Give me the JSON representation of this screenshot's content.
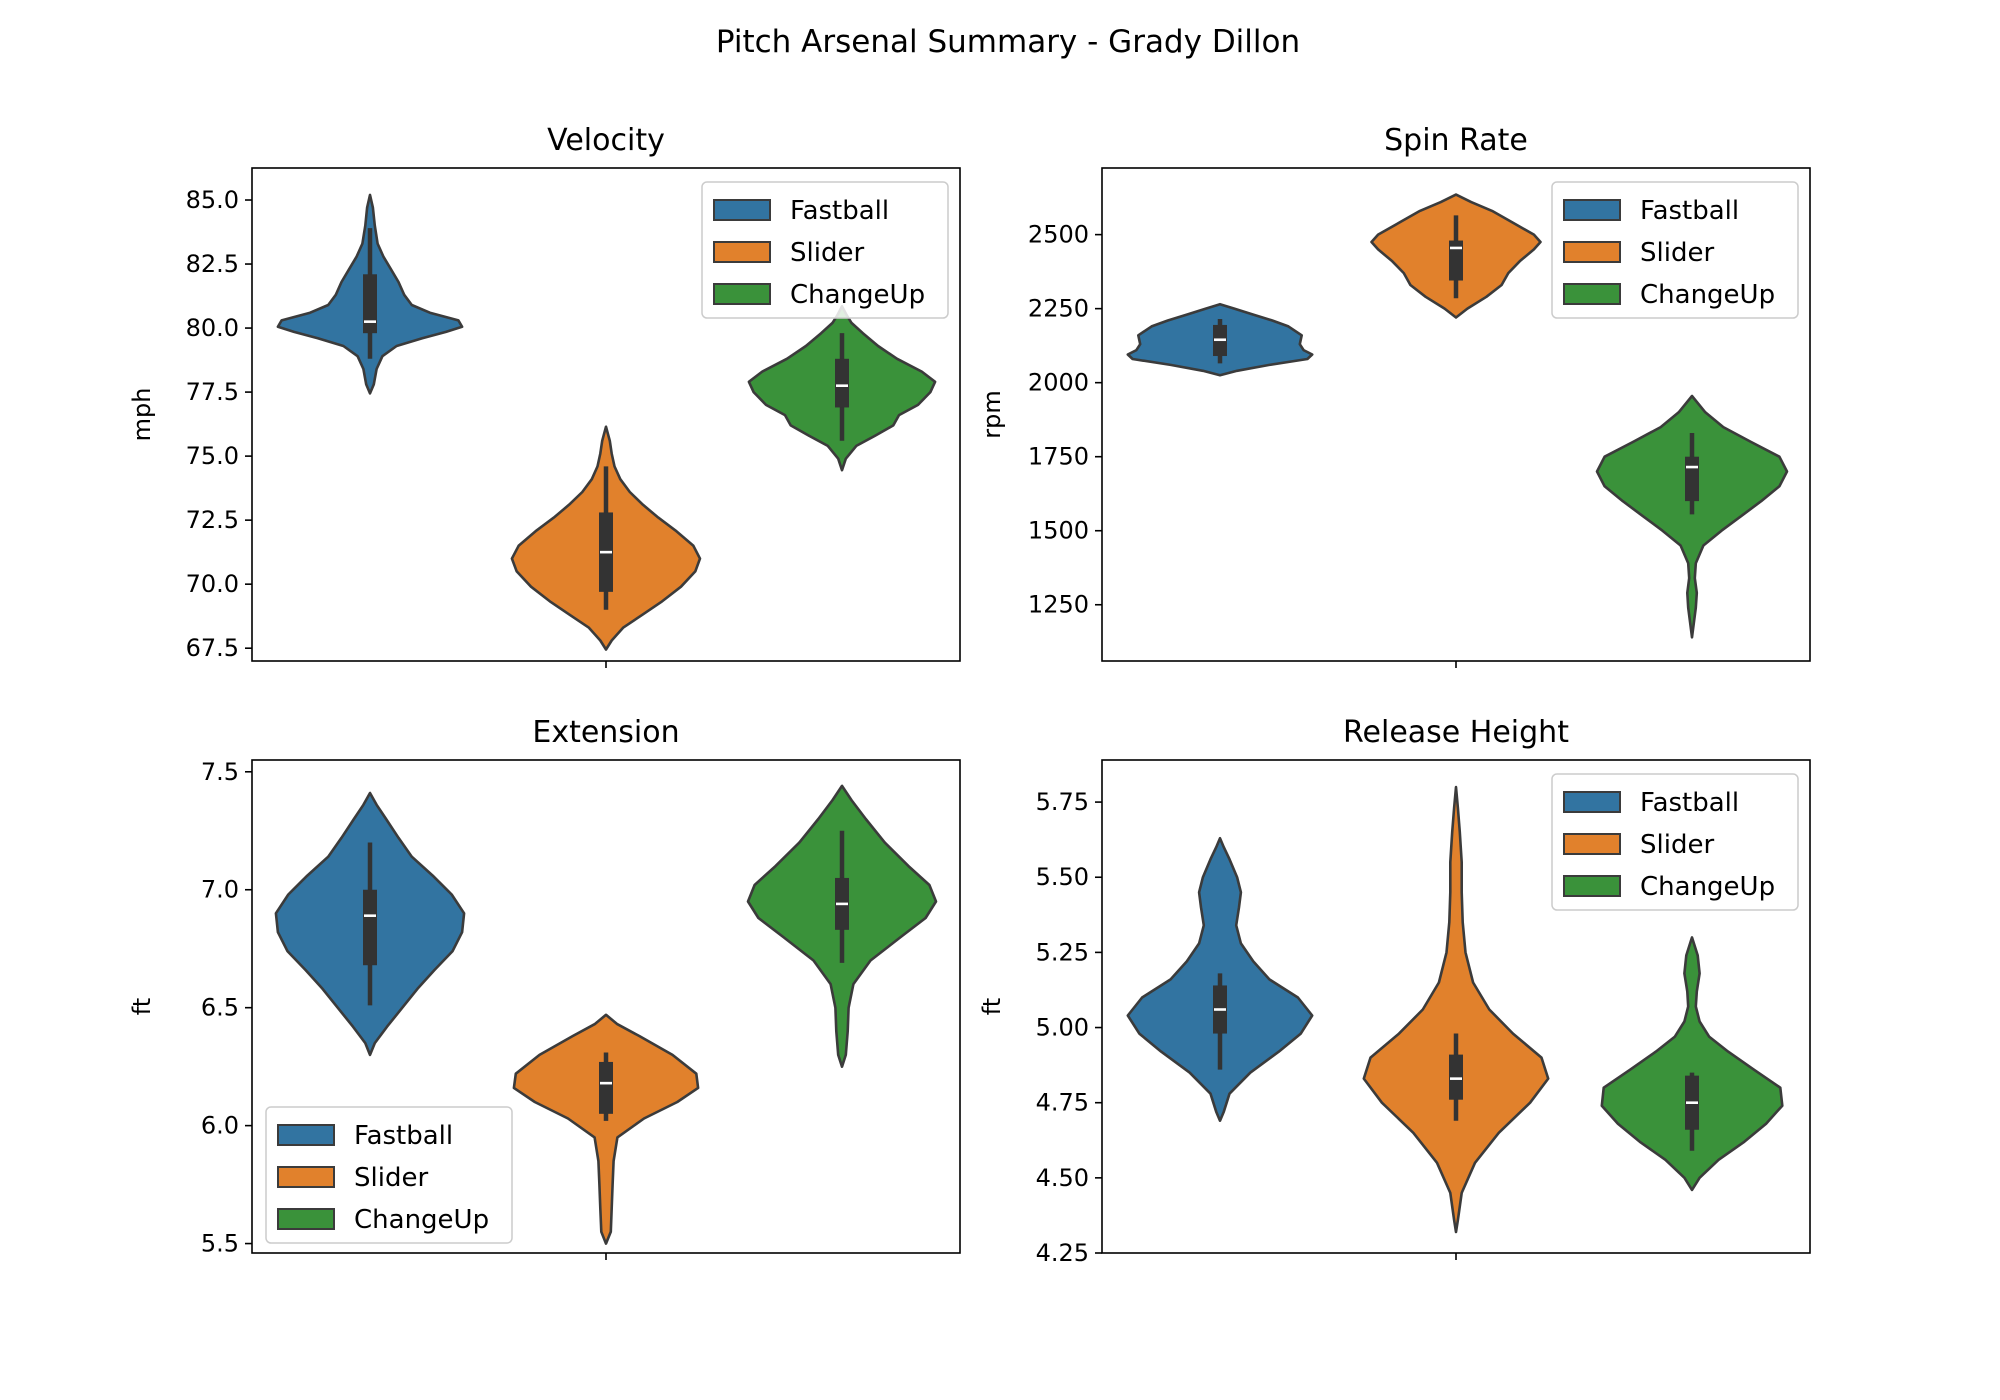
{
  "suptitle": "Pitch Arsenal Summary - Grady Dillon",
  "colors": {
    "Fastball": "#3274a1",
    "Slider": "#e1812c",
    "ChangeUp": "#3a923a",
    "outline": "#3b3b3b",
    "boxplot": "#333333",
    "median": "#ffffff"
  },
  "chart_data": [
    {
      "type": "violin",
      "title": "Velocity",
      "ylabel": "mph",
      "ylim": [
        67.0,
        86.25
      ],
      "yticks": [
        67.5,
        70.0,
        72.5,
        75.0,
        77.5,
        80.0,
        82.5,
        85.0
      ],
      "tick_decimals": 1,
      "legend": "upper right",
      "series": [
        {
          "name": "Fastball",
          "min": 78.8,
          "q1": 79.8,
          "median": 80.25,
          "q3": 82.1,
          "max": 83.9,
          "kde": [
            [
              77.45,
              0.0
            ],
            [
              77.8,
              0.04
            ],
            [
              78.4,
              0.07
            ],
            [
              78.9,
              0.13
            ],
            [
              79.3,
              0.28
            ],
            [
              79.6,
              0.55
            ],
            [
              79.85,
              0.8
            ],
            [
              80.05,
              0.97
            ],
            [
              80.3,
              0.93
            ],
            [
              80.6,
              0.63
            ],
            [
              80.9,
              0.44
            ],
            [
              81.3,
              0.36
            ],
            [
              81.8,
              0.3
            ],
            [
              82.3,
              0.22
            ],
            [
              82.8,
              0.14
            ],
            [
              83.3,
              0.08
            ],
            [
              84.0,
              0.05
            ],
            [
              84.7,
              0.03
            ],
            [
              85.2,
              0.0
            ]
          ]
        },
        {
          "name": "Slider",
          "min": 69.0,
          "q1": 69.7,
          "median": 71.25,
          "q3": 72.8,
          "max": 74.6,
          "kde": [
            [
              67.45,
              0.0
            ],
            [
              67.8,
              0.06
            ],
            [
              68.3,
              0.18
            ],
            [
              68.8,
              0.38
            ],
            [
              69.3,
              0.58
            ],
            [
              69.9,
              0.79
            ],
            [
              70.5,
              0.94
            ],
            [
              71.0,
              0.99
            ],
            [
              71.5,
              0.92
            ],
            [
              72.1,
              0.73
            ],
            [
              72.6,
              0.55
            ],
            [
              73.1,
              0.39
            ],
            [
              73.6,
              0.25
            ],
            [
              74.1,
              0.15
            ],
            [
              74.6,
              0.09
            ],
            [
              75.1,
              0.06
            ],
            [
              75.6,
              0.04
            ],
            [
              76.15,
              0.0
            ]
          ]
        },
        {
          "name": "ChangeUp",
          "min": 75.6,
          "q1": 76.9,
          "median": 77.75,
          "q3": 78.8,
          "max": 79.8,
          "kde": [
            [
              74.45,
              0.0
            ],
            [
              74.9,
              0.04
            ],
            [
              75.4,
              0.15
            ],
            [
              75.8,
              0.35
            ],
            [
              76.2,
              0.54
            ],
            [
              76.6,
              0.6
            ],
            [
              77.0,
              0.8
            ],
            [
              77.5,
              0.93
            ],
            [
              77.9,
              0.98
            ],
            [
              78.3,
              0.84
            ],
            [
              78.8,
              0.58
            ],
            [
              79.3,
              0.38
            ],
            [
              79.8,
              0.22
            ],
            [
              80.2,
              0.1
            ],
            [
              80.5,
              0.05
            ],
            [
              80.85,
              0.0
            ]
          ]
        }
      ]
    },
    {
      "type": "violin",
      "title": "Spin Rate",
      "ylabel": "rpm",
      "ylim": [
        1060,
        2725
      ],
      "yticks": [
        1250,
        1500,
        1750,
        2000,
        2250,
        2500
      ],
      "tick_decimals": 0,
      "legend": "upper right",
      "series": [
        {
          "name": "Fastball",
          "min": 2065,
          "q1": 2090,
          "median": 2145,
          "q3": 2195,
          "max": 2215,
          "kde": [
            [
              2025,
              0.0
            ],
            [
              2040,
              0.18
            ],
            [
              2060,
              0.52
            ],
            [
              2080,
              0.92
            ],
            [
              2095,
              0.97
            ],
            [
              2110,
              0.88
            ],
            [
              2130,
              0.84
            ],
            [
              2160,
              0.86
            ],
            [
              2190,
              0.72
            ],
            [
              2210,
              0.55
            ],
            [
              2230,
              0.35
            ],
            [
              2250,
              0.15
            ],
            [
              2265,
              0.0
            ]
          ]
        },
        {
          "name": "Slider",
          "min": 2285,
          "q1": 2345,
          "median": 2455,
          "q3": 2480,
          "max": 2565,
          "kde": [
            [
              2220,
              0.0
            ],
            [
              2250,
              0.12
            ],
            [
              2290,
              0.32
            ],
            [
              2330,
              0.48
            ],
            [
              2370,
              0.55
            ],
            [
              2410,
              0.67
            ],
            [
              2450,
              0.82
            ],
            [
              2475,
              0.89
            ],
            [
              2500,
              0.82
            ],
            [
              2540,
              0.6
            ],
            [
              2580,
              0.38
            ],
            [
              2610,
              0.16
            ],
            [
              2635,
              0.0
            ]
          ]
        },
        {
          "name": "ChangeUp",
          "min": 1555,
          "q1": 1600,
          "median": 1715,
          "q3": 1750,
          "max": 1830,
          "kde": [
            [
              1140,
              0.0
            ],
            [
              1190,
              0.02
            ],
            [
              1240,
              0.04
            ],
            [
              1290,
              0.05
            ],
            [
              1340,
              0.03
            ],
            [
              1390,
              0.04
            ],
            [
              1450,
              0.12
            ],
            [
              1500,
              0.31
            ],
            [
              1550,
              0.52
            ],
            [
              1600,
              0.73
            ],
            [
              1650,
              0.92
            ],
            [
              1700,
              1.0
            ],
            [
              1750,
              0.92
            ],
            [
              1800,
              0.62
            ],
            [
              1850,
              0.33
            ],
            [
              1900,
              0.14
            ],
            [
              1955,
              0.0
            ]
          ]
        }
      ]
    },
    {
      "type": "violin",
      "title": "Extension",
      "ylabel": "ft",
      "ylim": [
        5.46,
        7.55
      ],
      "yticks": [
        5.5,
        6.0,
        6.5,
        7.0,
        7.5
      ],
      "tick_decimals": 1,
      "legend": "lower left",
      "series": [
        {
          "name": "Fastball",
          "min": 6.51,
          "q1": 6.68,
          "median": 6.89,
          "q3": 7.0,
          "max": 7.2,
          "kde": [
            [
              6.3,
              0.0
            ],
            [
              6.35,
              0.05
            ],
            [
              6.42,
              0.18
            ],
            [
              6.5,
              0.34
            ],
            [
              6.58,
              0.5
            ],
            [
              6.66,
              0.68
            ],
            [
              6.74,
              0.87
            ],
            [
              6.82,
              0.97
            ],
            [
              6.9,
              0.99
            ],
            [
              6.98,
              0.86
            ],
            [
              7.06,
              0.66
            ],
            [
              7.14,
              0.44
            ],
            [
              7.22,
              0.3
            ],
            [
              7.3,
              0.17
            ],
            [
              7.36,
              0.07
            ],
            [
              7.41,
              0.0
            ]
          ]
        },
        {
          "name": "Slider",
          "min": 6.02,
          "q1": 6.05,
          "median": 6.18,
          "q3": 6.27,
          "max": 6.31,
          "kde": [
            [
              5.5,
              0.0
            ],
            [
              5.55,
              0.05
            ],
            [
              5.65,
              0.06
            ],
            [
              5.75,
              0.07
            ],
            [
              5.85,
              0.08
            ],
            [
              5.95,
              0.12
            ],
            [
              6.03,
              0.4
            ],
            [
              6.1,
              0.75
            ],
            [
              6.16,
              0.97
            ],
            [
              6.22,
              0.95
            ],
            [
              6.3,
              0.7
            ],
            [
              6.38,
              0.35
            ],
            [
              6.43,
              0.12
            ],
            [
              6.47,
              0.0
            ]
          ]
        },
        {
          "name": "ChangeUp",
          "min": 6.69,
          "q1": 6.83,
          "median": 6.94,
          "q3": 7.05,
          "max": 7.25,
          "kde": [
            [
              6.25,
              0.0
            ],
            [
              6.3,
              0.04
            ],
            [
              6.4,
              0.06
            ],
            [
              6.5,
              0.07
            ],
            [
              6.6,
              0.12
            ],
            [
              6.7,
              0.3
            ],
            [
              6.8,
              0.62
            ],
            [
              6.88,
              0.88
            ],
            [
              6.95,
              0.99
            ],
            [
              7.02,
              0.92
            ],
            [
              7.1,
              0.7
            ],
            [
              7.2,
              0.45
            ],
            [
              7.3,
              0.25
            ],
            [
              7.38,
              0.1
            ],
            [
              7.44,
              0.0
            ]
          ]
        }
      ]
    },
    {
      "type": "violin",
      "title": "Release Height",
      "ylabel": "ft",
      "ylim": [
        4.25,
        5.89
      ],
      "yticks": [
        4.25,
        4.5,
        4.75,
        5.0,
        5.25,
        5.5,
        5.75
      ],
      "tick_decimals": 2,
      "legend": "upper right",
      "series": [
        {
          "name": "Fastball",
          "min": 4.86,
          "q1": 4.98,
          "median": 5.06,
          "q3": 5.14,
          "max": 5.18,
          "kde": [
            [
              4.69,
              0.0
            ],
            [
              4.72,
              0.04
            ],
            [
              4.78,
              0.1
            ],
            [
              4.85,
              0.32
            ],
            [
              4.92,
              0.62
            ],
            [
              4.98,
              0.85
            ],
            [
              5.04,
              0.97
            ],
            [
              5.1,
              0.82
            ],
            [
              5.16,
              0.52
            ],
            [
              5.22,
              0.35
            ],
            [
              5.28,
              0.22
            ],
            [
              5.34,
              0.17
            ],
            [
              5.4,
              0.2
            ],
            [
              5.45,
              0.22
            ],
            [
              5.5,
              0.18
            ],
            [
              5.56,
              0.1
            ],
            [
              5.6,
              0.04
            ],
            [
              5.63,
              0.0
            ]
          ]
        },
        {
          "name": "Slider",
          "min": 4.69,
          "q1": 4.76,
          "median": 4.83,
          "q3": 4.91,
          "max": 4.98,
          "kde": [
            [
              4.32,
              0.0
            ],
            [
              4.36,
              0.02
            ],
            [
              4.45,
              0.06
            ],
            [
              4.55,
              0.2
            ],
            [
              4.65,
              0.45
            ],
            [
              4.75,
              0.78
            ],
            [
              4.83,
              0.97
            ],
            [
              4.9,
              0.9
            ],
            [
              4.98,
              0.6
            ],
            [
              5.06,
              0.35
            ],
            [
              5.15,
              0.18
            ],
            [
              5.25,
              0.1
            ],
            [
              5.35,
              0.07
            ],
            [
              5.45,
              0.06
            ],
            [
              5.55,
              0.06
            ],
            [
              5.65,
              0.04
            ],
            [
              5.73,
              0.02
            ],
            [
              5.8,
              0.0
            ]
          ]
        },
        {
          "name": "ChangeUp",
          "min": 4.59,
          "q1": 4.66,
          "median": 4.75,
          "q3": 4.84,
          "max": 4.85,
          "kde": [
            [
              4.46,
              0.0
            ],
            [
              4.5,
              0.08
            ],
            [
              4.56,
              0.28
            ],
            [
              4.62,
              0.55
            ],
            [
              4.68,
              0.78
            ],
            [
              4.74,
              0.95
            ],
            [
              4.8,
              0.93
            ],
            [
              4.86,
              0.65
            ],
            [
              4.92,
              0.38
            ],
            [
              4.97,
              0.18
            ],
            [
              5.02,
              0.08
            ],
            [
              5.07,
              0.04
            ],
            [
              5.12,
              0.05
            ],
            [
              5.18,
              0.08
            ],
            [
              5.24,
              0.06
            ],
            [
              5.28,
              0.02
            ],
            [
              5.3,
              0.0
            ]
          ]
        }
      ]
    }
  ]
}
